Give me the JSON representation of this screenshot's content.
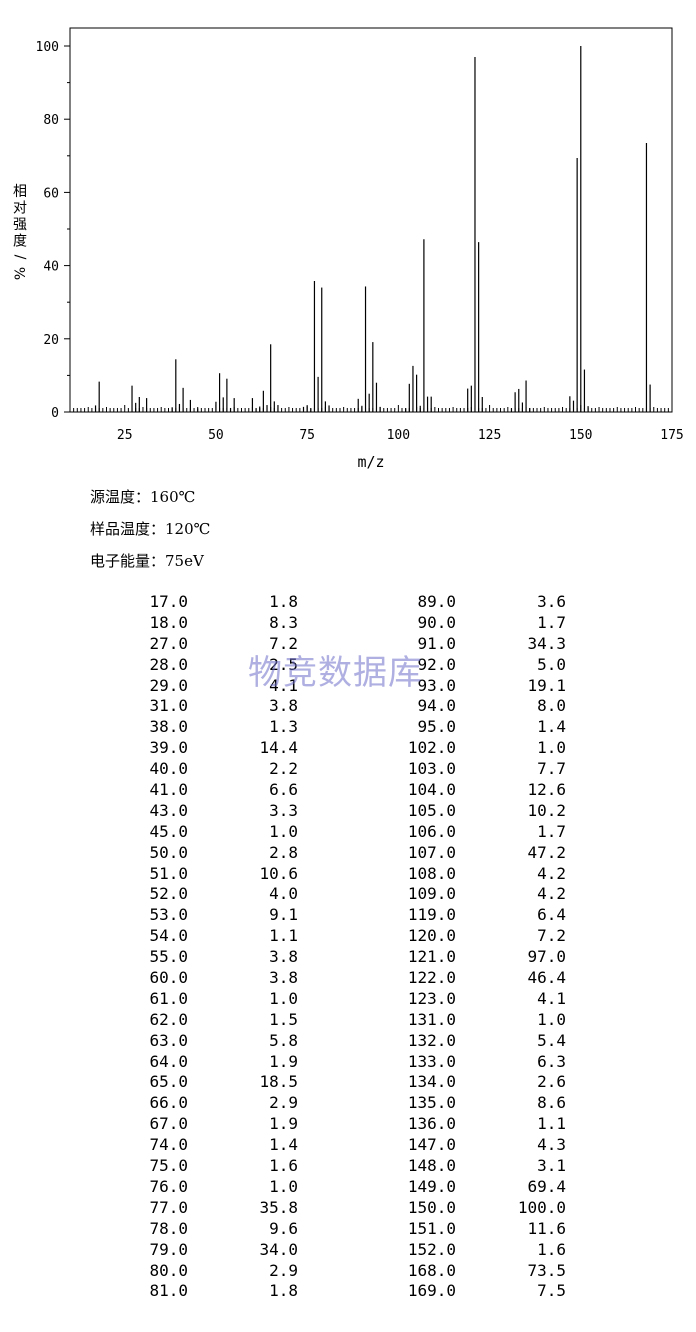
{
  "chart_data": {
    "type": "bar",
    "xlabel": "m/z",
    "ylabel": "相对强度/%",
    "xlim": [
      10,
      175
    ],
    "ylim": [
      0,
      100
    ],
    "x_ticks": [
      "25",
      "50",
      "75",
      "100",
      "125",
      "150",
      "175"
    ],
    "y_ticks": [
      "0",
      "20",
      "40",
      "60",
      "80",
      "100"
    ],
    "peaks": [
      [
        17.0,
        1.8
      ],
      [
        18.0,
        8.3
      ],
      [
        27.0,
        7.2
      ],
      [
        28.0,
        2.5
      ],
      [
        29.0,
        4.1
      ],
      [
        31.0,
        3.8
      ],
      [
        38.0,
        1.3
      ],
      [
        39.0,
        14.4
      ],
      [
        40.0,
        2.2
      ],
      [
        41.0,
        6.6
      ],
      [
        43.0,
        3.3
      ],
      [
        45.0,
        1.0
      ],
      [
        50.0,
        2.8
      ],
      [
        51.0,
        10.6
      ],
      [
        52.0,
        4.0
      ],
      [
        53.0,
        9.1
      ],
      [
        54.0,
        1.1
      ],
      [
        55.0,
        3.8
      ],
      [
        60.0,
        3.8
      ],
      [
        61.0,
        1.0
      ],
      [
        62.0,
        1.5
      ],
      [
        63.0,
        5.8
      ],
      [
        64.0,
        1.9
      ],
      [
        65.0,
        18.5
      ],
      [
        66.0,
        2.9
      ],
      [
        67.0,
        1.9
      ],
      [
        74.0,
        1.4
      ],
      [
        75.0,
        1.6
      ],
      [
        76.0,
        1.0
      ],
      [
        77.0,
        35.8
      ],
      [
        78.0,
        9.6
      ],
      [
        79.0,
        34.0
      ],
      [
        80.0,
        2.9
      ],
      [
        81.0,
        1.8
      ],
      [
        89.0,
        3.6
      ],
      [
        90.0,
        1.7
      ],
      [
        91.0,
        34.3
      ],
      [
        92.0,
        5.0
      ],
      [
        93.0,
        19.1
      ],
      [
        94.0,
        8.0
      ],
      [
        95.0,
        1.4
      ],
      [
        102.0,
        1.0
      ],
      [
        103.0,
        7.7
      ],
      [
        104.0,
        12.6
      ],
      [
        105.0,
        10.2
      ],
      [
        106.0,
        1.7
      ],
      [
        107.0,
        47.2
      ],
      [
        108.0,
        4.2
      ],
      [
        109.0,
        4.2
      ],
      [
        119.0,
        6.4
      ],
      [
        120.0,
        7.2
      ],
      [
        121.0,
        97.0
      ],
      [
        122.0,
        46.4
      ],
      [
        123.0,
        4.1
      ],
      [
        131.0,
        1.0
      ],
      [
        132.0,
        5.4
      ],
      [
        133.0,
        6.3
      ],
      [
        134.0,
        2.6
      ],
      [
        135.0,
        8.6
      ],
      [
        136.0,
        1.1
      ],
      [
        147.0,
        4.3
      ],
      [
        148.0,
        3.1
      ],
      [
        149.0,
        69.4
      ],
      [
        150.0,
        100.0
      ],
      [
        151.0,
        11.6
      ],
      [
        152.0,
        1.6
      ],
      [
        168.0,
        73.5
      ],
      [
        169.0,
        7.5
      ]
    ],
    "grid": false
  },
  "info": {
    "source_temp": "源温度：160℃",
    "sample_temp": "样品温度：120℃",
    "electron_energy": "电子能量：75eV"
  },
  "table": {
    "left": [
      [
        "17.0",
        "1.8"
      ],
      [
        "18.0",
        "8.3"
      ],
      [
        "27.0",
        "7.2"
      ],
      [
        "28.0",
        "2.5"
      ],
      [
        "29.0",
        "4.1"
      ],
      [
        "31.0",
        "3.8"
      ],
      [
        "38.0",
        "1.3"
      ],
      [
        "39.0",
        "14.4"
      ],
      [
        "40.0",
        "2.2"
      ],
      [
        "41.0",
        "6.6"
      ],
      [
        "43.0",
        "3.3"
      ],
      [
        "45.0",
        "1.0"
      ],
      [
        "50.0",
        "2.8"
      ],
      [
        "51.0",
        "10.6"
      ],
      [
        "52.0",
        "4.0"
      ],
      [
        "53.0",
        "9.1"
      ],
      [
        "54.0",
        "1.1"
      ],
      [
        "55.0",
        "3.8"
      ],
      [
        "60.0",
        "3.8"
      ],
      [
        "61.0",
        "1.0"
      ],
      [
        "62.0",
        "1.5"
      ],
      [
        "63.0",
        "5.8"
      ],
      [
        "64.0",
        "1.9"
      ],
      [
        "65.0",
        "18.5"
      ],
      [
        "66.0",
        "2.9"
      ],
      [
        "67.0",
        "1.9"
      ],
      [
        "74.0",
        "1.4"
      ],
      [
        "75.0",
        "1.6"
      ],
      [
        "76.0",
        "1.0"
      ],
      [
        "77.0",
        "35.8"
      ],
      [
        "78.0",
        "9.6"
      ],
      [
        "79.0",
        "34.0"
      ],
      [
        "80.0",
        "2.9"
      ],
      [
        "81.0",
        "1.8"
      ]
    ],
    "right": [
      [
        "89.0",
        "3.6"
      ],
      [
        "90.0",
        "1.7"
      ],
      [
        "91.0",
        "34.3"
      ],
      [
        "92.0",
        "5.0"
      ],
      [
        "93.0",
        "19.1"
      ],
      [
        "94.0",
        "8.0"
      ],
      [
        "95.0",
        "1.4"
      ],
      [
        "102.0",
        "1.0"
      ],
      [
        "103.0",
        "7.7"
      ],
      [
        "104.0",
        "12.6"
      ],
      [
        "105.0",
        "10.2"
      ],
      [
        "106.0",
        "1.7"
      ],
      [
        "107.0",
        "47.2"
      ],
      [
        "108.0",
        "4.2"
      ],
      [
        "109.0",
        "4.2"
      ],
      [
        "119.0",
        "6.4"
      ],
      [
        "120.0",
        "7.2"
      ],
      [
        "121.0",
        "97.0"
      ],
      [
        "122.0",
        "46.4"
      ],
      [
        "123.0",
        "4.1"
      ],
      [
        "131.0",
        "1.0"
      ],
      [
        "132.0",
        "5.4"
      ],
      [
        "133.0",
        "6.3"
      ],
      [
        "134.0",
        "2.6"
      ],
      [
        "135.0",
        "8.6"
      ],
      [
        "136.0",
        "1.1"
      ],
      [
        "147.0",
        "4.3"
      ],
      [
        "148.0",
        "3.1"
      ],
      [
        "149.0",
        "69.4"
      ],
      [
        "150.0",
        "100.0"
      ],
      [
        "151.0",
        "11.6"
      ],
      [
        "152.0",
        "1.6"
      ],
      [
        "168.0",
        "73.5"
      ],
      [
        "169.0",
        "7.5"
      ]
    ]
  },
  "watermark": "物竞数据库"
}
